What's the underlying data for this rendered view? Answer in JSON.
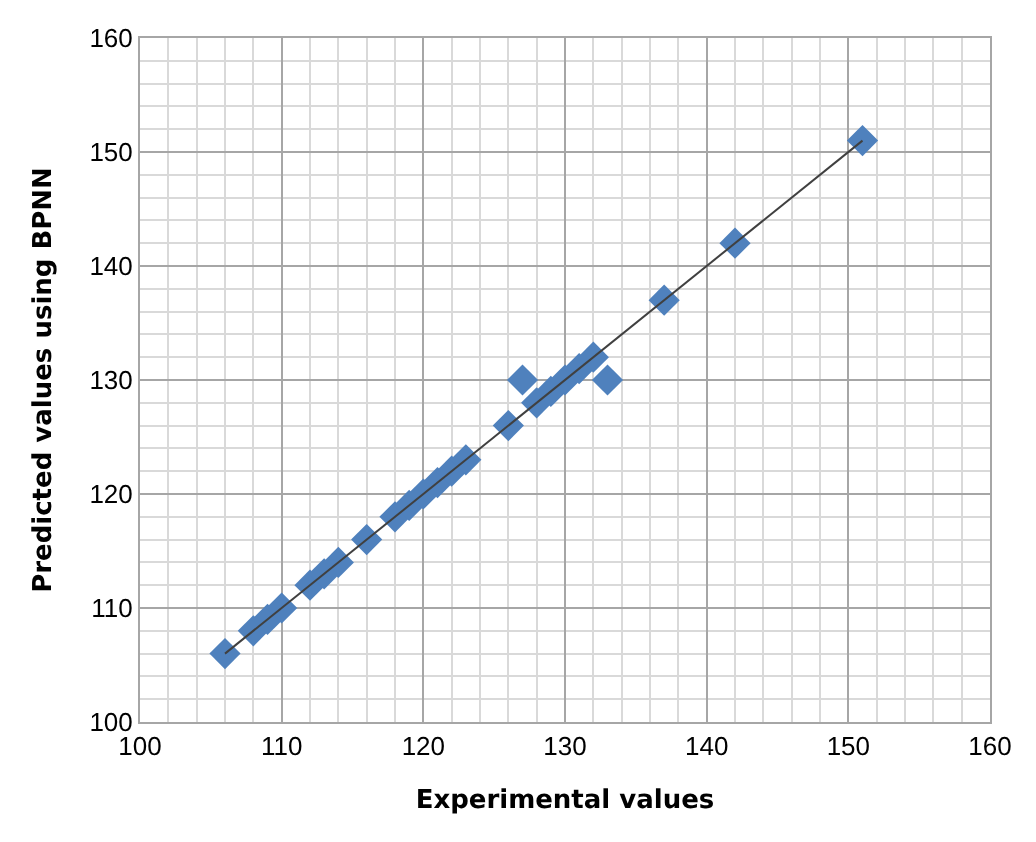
{
  "chart_data": {
    "type": "scatter",
    "xlabel": "Experimental values",
    "ylabel": "Predicted values using BPNN",
    "xlim": [
      100,
      160
    ],
    "ylim": [
      100,
      160
    ],
    "xticks": [
      100,
      110,
      120,
      130,
      140,
      150,
      160
    ],
    "yticks": [
      100,
      110,
      120,
      130,
      140,
      150,
      160
    ],
    "grid": true,
    "legend": false,
    "marker": "diamond",
    "series": [
      {
        "color": "#4f81bd",
        "x": [
          106,
          108,
          109,
          110,
          112,
          113,
          114,
          116,
          118,
          119,
          120,
          121,
          122,
          123,
          126,
          127,
          128,
          129,
          130,
          131,
          132,
          133,
          137,
          142,
          151
        ],
        "values": [
          106,
          108,
          109,
          110,
          112,
          113,
          114,
          116,
          118,
          119,
          120,
          121,
          122,
          123,
          126,
          130,
          128,
          129,
          130,
          131,
          132,
          130,
          137,
          142,
          151
        ]
      },
      {
        "type": "line",
        "color": "#404040",
        "marker": "none",
        "x": [
          106,
          151
        ],
        "values": [
          106,
          151
        ]
      }
    ]
  }
}
